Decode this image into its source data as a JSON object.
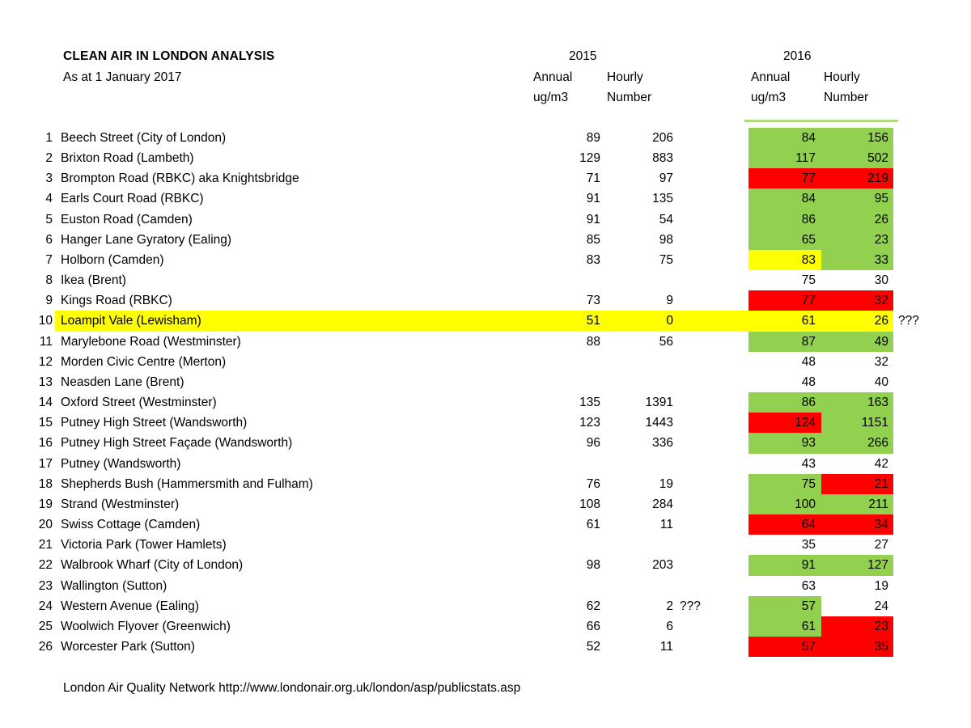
{
  "header": {
    "title": "CLEAN AIR IN LONDON ANALYSIS",
    "subtitle": "As at 1 January 2017"
  },
  "columns": {
    "y2015": {
      "year": "2015",
      "annual": "Annual",
      "annual_unit": "ug/m3",
      "hourly": "Hourly",
      "hourly_unit": "Number"
    },
    "y2016": {
      "year": "2016",
      "annual": "Annual",
      "annual_unit": "ug/m3",
      "hourly": "Hourly",
      "hourly_unit": "Number"
    }
  },
  "colors": {
    "good": "#92D050",
    "bad": "#FF0000",
    "flag": "#FFFF00",
    "none": "transparent"
  },
  "rows": [
    {
      "n": "1",
      "name": "Beech Street (City of London)",
      "a2015": "89",
      "h2015": "206",
      "a2016": "84",
      "h2016": "156",
      "a2016_color": "good",
      "h2016_color": "good",
      "note2015": "",
      "note2016": "",
      "row_highlight": false
    },
    {
      "n": "2",
      "name": "Brixton Road (Lambeth)",
      "a2015": "129",
      "h2015": "883",
      "a2016": "117",
      "h2016": "502",
      "a2016_color": "good",
      "h2016_color": "good",
      "note2015": "",
      "note2016": "",
      "row_highlight": false
    },
    {
      "n": "3",
      "name": "Brompton Road (RBKC) aka Knightsbridge",
      "a2015": "71",
      "h2015": "97",
      "a2016": "77",
      "h2016": "219",
      "a2016_color": "bad",
      "h2016_color": "bad",
      "note2015": "",
      "note2016": "",
      "row_highlight": false
    },
    {
      "n": "4",
      "name": "Earls Court Road (RBKC)",
      "a2015": "91",
      "h2015": "135",
      "a2016": "84",
      "h2016": "95",
      "a2016_color": "good",
      "h2016_color": "good",
      "note2015": "",
      "note2016": "",
      "row_highlight": false
    },
    {
      "n": "5",
      "name": "Euston Road (Camden)",
      "a2015": "91",
      "h2015": "54",
      "a2016": "86",
      "h2016": "26",
      "a2016_color": "good",
      "h2016_color": "good",
      "note2015": "",
      "note2016": "",
      "row_highlight": false
    },
    {
      "n": "6",
      "name": "Hanger Lane Gyratory (Ealing)",
      "a2015": "85",
      "h2015": "98",
      "a2016": "65",
      "h2016": "23",
      "a2016_color": "good",
      "h2016_color": "good",
      "note2015": "",
      "note2016": "",
      "row_highlight": false
    },
    {
      "n": "7",
      "name": "Holborn (Camden)",
      "a2015": "83",
      "h2015": "75",
      "a2016": "83",
      "h2016": "33",
      "a2016_color": "flag",
      "h2016_color": "good",
      "note2015": "",
      "note2016": "",
      "row_highlight": false
    },
    {
      "n": "8",
      "name": "Ikea (Brent)",
      "a2015": "",
      "h2015": "",
      "a2016": "75",
      "h2016": "30",
      "a2016_color": "none",
      "h2016_color": "none",
      "note2015": "",
      "note2016": "",
      "row_highlight": false
    },
    {
      "n": "9",
      "name": "Kings Road (RBKC)",
      "a2015": "73",
      "h2015": "9",
      "a2016": "77",
      "h2016": "32",
      "a2016_color": "bad",
      "h2016_color": "bad",
      "note2015": "",
      "note2016": "",
      "row_highlight": false
    },
    {
      "n": "10",
      "name": "Loampit Vale (Lewisham)",
      "a2015": "51",
      "h2015": "0",
      "a2016": "61",
      "h2016": "26",
      "a2016_color": "flag",
      "h2016_color": "flag",
      "note2015": "",
      "note2016": "???",
      "row_highlight": true
    },
    {
      "n": "11",
      "name": "Marylebone Road (Westminster)",
      "a2015": "88",
      "h2015": "56",
      "a2016": "87",
      "h2016": "49",
      "a2016_color": "good",
      "h2016_color": "good",
      "note2015": "",
      "note2016": "",
      "row_highlight": false
    },
    {
      "n": "12",
      "name": "Morden Civic Centre (Merton)",
      "a2015": "",
      "h2015": "",
      "a2016": "48",
      "h2016": "32",
      "a2016_color": "none",
      "h2016_color": "none",
      "note2015": "",
      "note2016": "",
      "row_highlight": false
    },
    {
      "n": "13",
      "name": "Neasden Lane (Brent)",
      "a2015": "",
      "h2015": "",
      "a2016": "48",
      "h2016": "40",
      "a2016_color": "none",
      "h2016_color": "none",
      "note2015": "",
      "note2016": "",
      "row_highlight": false
    },
    {
      "n": "14",
      "name": "Oxford Street (Westminster)",
      "a2015": "135",
      "h2015": "1391",
      "a2016": "86",
      "h2016": "163",
      "a2016_color": "good",
      "h2016_color": "good",
      "note2015": "",
      "note2016": "",
      "row_highlight": false
    },
    {
      "n": "15",
      "name": "Putney High Street (Wandsworth)",
      "a2015": "123",
      "h2015": "1443",
      "a2016": "124",
      "h2016": "1151",
      "a2016_color": "bad",
      "h2016_color": "good",
      "note2015": "",
      "note2016": "",
      "row_highlight": false
    },
    {
      "n": "16",
      "name": "Putney High Street Façade (Wandsworth)",
      "a2015": "96",
      "h2015": "336",
      "a2016": "93",
      "h2016": "266",
      "a2016_color": "good",
      "h2016_color": "good",
      "note2015": "",
      "note2016": "",
      "row_highlight": false
    },
    {
      "n": "17",
      "name": "Putney (Wandsworth)",
      "a2015": "",
      "h2015": "",
      "a2016": "43",
      "h2016": "42",
      "a2016_color": "none",
      "h2016_color": "none",
      "note2015": "",
      "note2016": "",
      "row_highlight": false
    },
    {
      "n": "18",
      "name": "Shepherds Bush (Hammersmith and Fulham)",
      "a2015": "76",
      "h2015": "19",
      "a2016": "75",
      "h2016": "21",
      "a2016_color": "good",
      "h2016_color": "bad",
      "note2015": "",
      "note2016": "",
      "row_highlight": false
    },
    {
      "n": "19",
      "name": "Strand (Westminster)",
      "a2015": "108",
      "h2015": "284",
      "a2016": "100",
      "h2016": "211",
      "a2016_color": "good",
      "h2016_color": "good",
      "note2015": "",
      "note2016": "",
      "row_highlight": false
    },
    {
      "n": "20",
      "name": "Swiss Cottage (Camden)",
      "a2015": "61",
      "h2015": "11",
      "a2016": "64",
      "h2016": "34",
      "a2016_color": "bad",
      "h2016_color": "bad",
      "note2015": "",
      "note2016": "",
      "row_highlight": false
    },
    {
      "n": "21",
      "name": "Victoria Park (Tower Hamlets)",
      "a2015": "",
      "h2015": "",
      "a2016": "35",
      "h2016": "27",
      "a2016_color": "none",
      "h2016_color": "none",
      "note2015": "",
      "note2016": "",
      "row_highlight": false
    },
    {
      "n": "22",
      "name": "Walbrook Wharf (City of London)",
      "a2015": "98",
      "h2015": "203",
      "a2016": "91",
      "h2016": "127",
      "a2016_color": "good",
      "h2016_color": "good",
      "note2015": "",
      "note2016": "",
      "row_highlight": false
    },
    {
      "n": "23",
      "name": "Wallington (Sutton)",
      "a2015": "",
      "h2015": "",
      "a2016": "63",
      "h2016": "19",
      "a2016_color": "none",
      "h2016_color": "none",
      "note2015": "",
      "note2016": "",
      "row_highlight": false
    },
    {
      "n": "24",
      "name": "Western Avenue (Ealing)",
      "a2015": "62",
      "h2015": "2",
      "a2016": "57",
      "h2016": "24",
      "a2016_color": "good",
      "h2016_color": "none",
      "note2015": "???",
      "note2016": "",
      "row_highlight": false
    },
    {
      "n": "25",
      "name": "Woolwich Flyover (Greenwich)",
      "a2015": "66",
      "h2015": "6",
      "a2016": "61",
      "h2016": "23",
      "a2016_color": "good",
      "h2016_color": "bad",
      "note2015": "",
      "note2016": "",
      "row_highlight": false
    },
    {
      "n": "26",
      "name": "Worcester Park (Sutton)",
      "a2015": "52",
      "h2015": "11",
      "a2016": "57",
      "h2016": "35",
      "a2016_color": "bad",
      "h2016_color": "bad",
      "note2015": "",
      "note2016": "",
      "row_highlight": false
    }
  ],
  "footer": {
    "source": "London Air Quality Network http://www.londonair.org.uk/london/asp/publicstats.asp"
  }
}
